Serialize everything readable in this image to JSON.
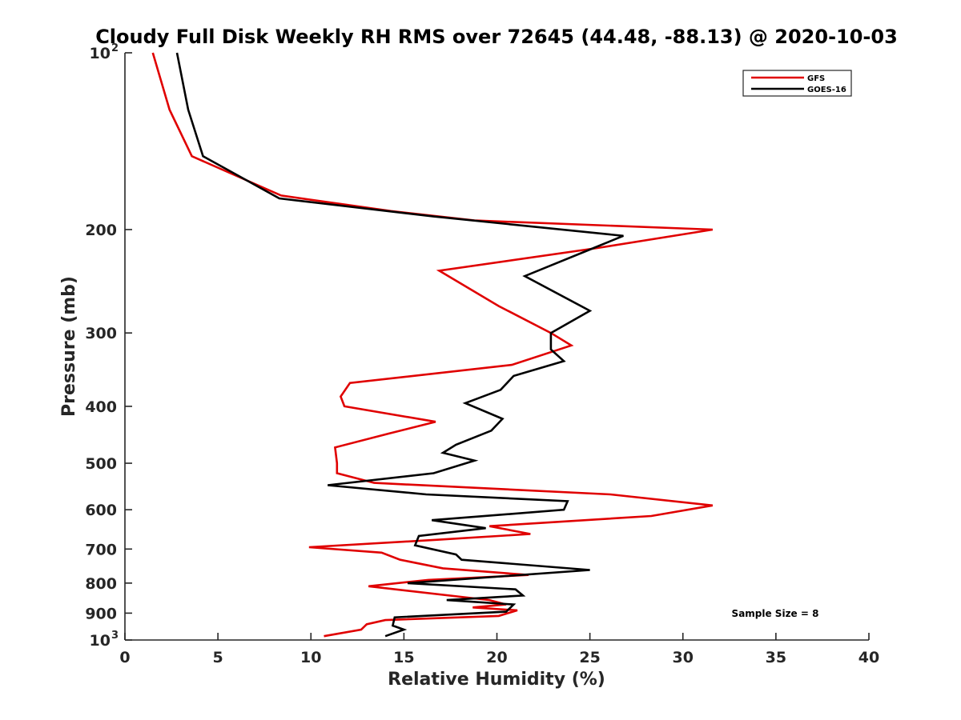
{
  "chart_data": {
    "type": "line",
    "title": "Cloudy Full Disk Weekly RH RMS over 72645 (44.48, -88.13) @ 2020-10-03",
    "xlabel": "Relative Humidity (%)",
    "ylabel": "Pressure (mb)",
    "xlim": [
      0,
      40
    ],
    "ylim": [
      100,
      1000
    ],
    "yscale": "log",
    "y_reversed": true,
    "x_ticks": [
      "0",
      "5",
      "10",
      "15",
      "20",
      "25",
      "30",
      "35",
      "40"
    ],
    "y_ticks": [
      {
        "value": 100,
        "label": "10",
        "sup": "2"
      },
      {
        "value": 200,
        "label": "200"
      },
      {
        "value": 300,
        "label": "300"
      },
      {
        "value": 400,
        "label": "400"
      },
      {
        "value": 500,
        "label": "500"
      },
      {
        "value": 600,
        "label": "600"
      },
      {
        "value": 700,
        "label": "700"
      },
      {
        "value": 800,
        "label": "800"
      },
      {
        "value": 900,
        "label": "900"
      },
      {
        "value": 1000,
        "label": "10",
        "sup": "3"
      }
    ],
    "grid": false,
    "legend_position": "top-right",
    "annotation": "Sample Size = 8",
    "series": [
      {
        "name": "GFS",
        "color": "#e00000",
        "points": [
          [
            1.5,
            100
          ],
          [
            2.4,
            125
          ],
          [
            3.6,
            150
          ],
          [
            8.4,
            175
          ],
          [
            14.3,
            186
          ],
          [
            18.8,
            193
          ],
          [
            31.6,
            200
          ],
          [
            25.4,
            215
          ],
          [
            16.9,
            235
          ],
          [
            20.1,
            270
          ],
          [
            22.9,
            300
          ],
          [
            24.0,
            315
          ],
          [
            20.8,
            340
          ],
          [
            12.1,
            365
          ],
          [
            11.6,
            385
          ],
          [
            11.8,
            400
          ],
          [
            16.7,
            425
          ],
          [
            14.2,
            445
          ],
          [
            11.3,
            470
          ],
          [
            11.4,
            500
          ],
          [
            11.4,
            520
          ],
          [
            13.4,
            540
          ],
          [
            26.1,
            565
          ],
          [
            31.6,
            590
          ],
          [
            28.3,
            615
          ],
          [
            19.6,
            640
          ],
          [
            21.8,
            660
          ],
          [
            16.8,
            675
          ],
          [
            9.9,
            695
          ],
          [
            13.8,
            710
          ],
          [
            14.8,
            730
          ],
          [
            17.1,
            755
          ],
          [
            21.7,
            775
          ],
          [
            16.3,
            790
          ],
          [
            13.1,
            810
          ],
          [
            19.6,
            855
          ],
          [
            20.5,
            870
          ],
          [
            18.7,
            880
          ],
          [
            21.1,
            890
          ],
          [
            20.1,
            910
          ],
          [
            14.0,
            925
          ],
          [
            13.0,
            940
          ],
          [
            12.7,
            960
          ],
          [
            10.7,
            985
          ]
        ]
      },
      {
        "name": "GOES-16",
        "color": "#000000",
        "points": [
          [
            2.8,
            100
          ],
          [
            3.4,
            125
          ],
          [
            4.2,
            150
          ],
          [
            8.3,
            177
          ],
          [
            16.6,
            190
          ],
          [
            26.8,
            205
          ],
          [
            25.2,
            215
          ],
          [
            21.5,
            240
          ],
          [
            25.0,
            275
          ],
          [
            22.9,
            300
          ],
          [
            22.9,
            320
          ],
          [
            23.6,
            335
          ],
          [
            20.9,
            355
          ],
          [
            20.2,
            375
          ],
          [
            18.3,
            395
          ],
          [
            20.3,
            420
          ],
          [
            19.7,
            440
          ],
          [
            17.8,
            465
          ],
          [
            17.1,
            480
          ],
          [
            18.8,
            495
          ],
          [
            16.6,
            520
          ],
          [
            10.9,
            545
          ],
          [
            16.2,
            565
          ],
          [
            23.8,
            580
          ],
          [
            23.6,
            600
          ],
          [
            16.5,
            625
          ],
          [
            19.4,
            645
          ],
          [
            15.8,
            665
          ],
          [
            15.6,
            690
          ],
          [
            17.8,
            715
          ],
          [
            18.1,
            730
          ],
          [
            25.0,
            760
          ],
          [
            15.2,
            800
          ],
          [
            21.0,
            820
          ],
          [
            21.4,
            840
          ],
          [
            17.3,
            855
          ],
          [
            20.9,
            870
          ],
          [
            20.5,
            895
          ],
          [
            14.5,
            915
          ],
          [
            14.4,
            945
          ],
          [
            15.0,
            960
          ],
          [
            14.0,
            985
          ]
        ]
      }
    ]
  }
}
